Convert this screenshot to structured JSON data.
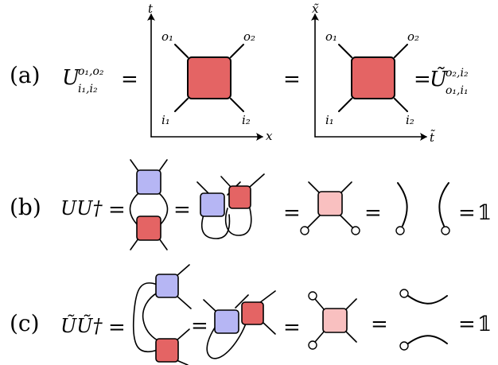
{
  "colors": {
    "gate_u": "#e46464",
    "gate_u_dagger": "#b6b6f4",
    "gate_product": "#f9c0c0"
  },
  "row_a": {
    "label": "(a)",
    "lhs_base": "U",
    "lhs_sup": "o₁,o₂",
    "lhs_sub": "i₁,i₂",
    "rhs_base": "Ũ",
    "rhs_sup": "o₂,i₂",
    "rhs_sub": "o₁,i₁",
    "eq": "=",
    "panel1": {
      "axis_v": "t",
      "axis_h": "x",
      "leg_tl": "o₁",
      "leg_tr": "o₂",
      "leg_bl": "i₁",
      "leg_br": "i₂"
    },
    "panel2": {
      "axis_v": "x̃",
      "axis_h": "t̃",
      "leg_tl": "o₁",
      "leg_tr": "o₂",
      "leg_bl": "i₁",
      "leg_br": "i₂"
    }
  },
  "row_b": {
    "label": "(b)",
    "lhs": "UU†",
    "eq": "=",
    "identity": "𝟙"
  },
  "row_c": {
    "label": "(c)",
    "lhs": "ŨŨ†",
    "eq": "=",
    "identity": "𝟙"
  }
}
